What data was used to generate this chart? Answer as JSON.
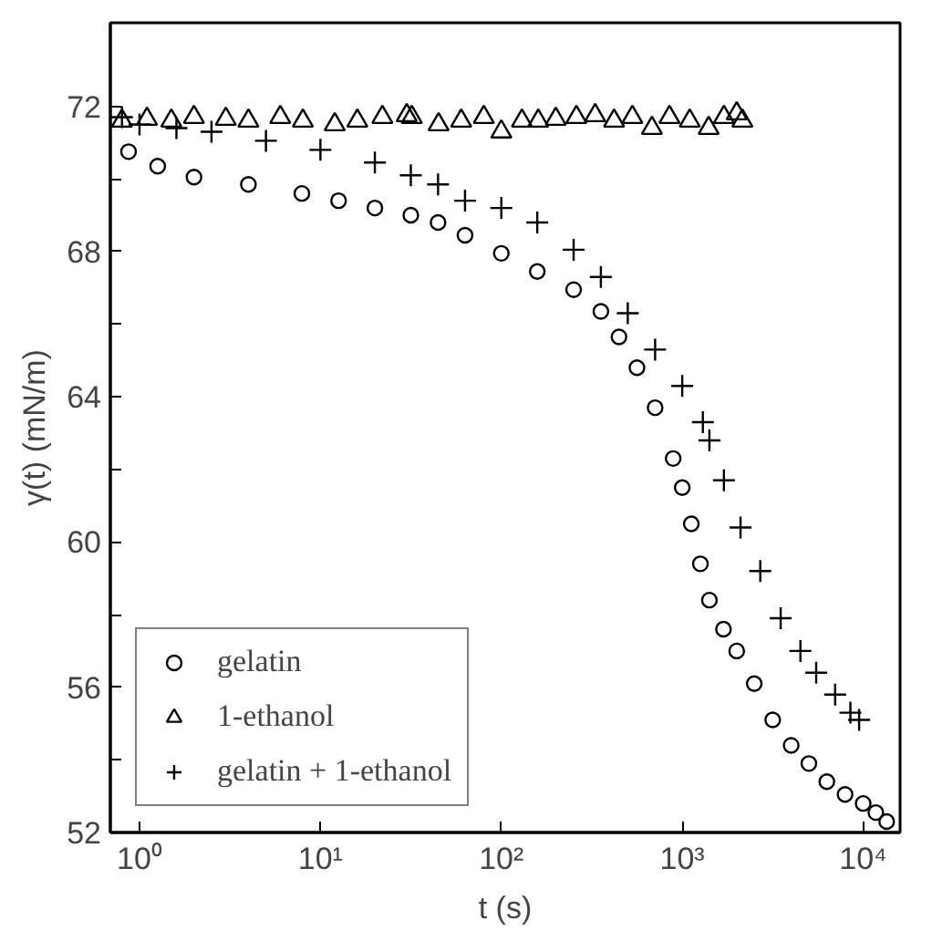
{
  "chart_data": {
    "type": "scatter",
    "xlabel": "t (s)",
    "ylabel": "γ(t) (mN/m)",
    "log": "x",
    "grid": false,
    "legend": "bottom left",
    "xlim": [
      0.69,
      16000
    ],
    "ylim": [
      52,
      74.3
    ],
    "xticks": [
      {
        "value": 1,
        "label": "10⁰"
      },
      {
        "value": 10,
        "label": "10¹"
      },
      {
        "value": 100,
        "label": "10²"
      },
      {
        "value": 1000,
        "label": "10³"
      },
      {
        "value": 10000,
        "label": "10⁴"
      }
    ],
    "yticks": [
      52,
      {
        "value": 54,
        "label": null
      },
      56,
      {
        "value": 58,
        "label": null
      },
      60,
      {
        "value": 62,
        "label": null
      },
      64,
      {
        "value": 66,
        "label": null
      },
      68,
      {
        "value": 70,
        "label": null
      },
      72
    ],
    "series": [
      {
        "name": "gelatin",
        "color": "#000000",
        "marker": "circle",
        "x": [
          0.87,
          1.26,
          2,
          4,
          7.9,
          12.6,
          20,
          31.6,
          44.7,
          63,
          100,
          158,
          251,
          355,
          447,
          562,
          708,
          891,
          1000,
          1122,
          1260,
          1413,
          1690,
          2000,
          2500,
          3162,
          4000,
          5012,
          6300,
          7943,
          10000,
          11750,
          13490
        ],
        "values": [
          70.75,
          70.35,
          70.05,
          69.85,
          69.6,
          69.4,
          69.2,
          69.0,
          68.8,
          68.45,
          67.95,
          67.45,
          66.95,
          66.35,
          65.65,
          64.8,
          63.7,
          62.3,
          61.5,
          60.5,
          59.4,
          58.4,
          57.6,
          57.0,
          56.1,
          55.1,
          54.4,
          53.9,
          53.4,
          53.05,
          52.8,
          52.55,
          52.3
        ]
      },
      {
        "name": "1-ethanol",
        "color": "#000000",
        "marker": "triangle",
        "x": [
          0.8,
          1.1,
          1.5,
          2,
          3,
          4,
          6,
          8,
          12,
          16,
          22,
          30,
          32,
          45,
          60,
          80,
          100,
          130,
          160,
          200,
          260,
          330,
          420,
          530,
          680,
          850,
          1100,
          1400,
          1700,
          2000,
          2150
        ],
        "values": [
          71.6,
          71.65,
          71.6,
          71.7,
          71.65,
          71.6,
          71.7,
          71.6,
          71.5,
          71.6,
          71.7,
          71.75,
          71.7,
          71.5,
          71.6,
          71.7,
          71.3,
          71.6,
          71.6,
          71.65,
          71.7,
          71.75,
          71.6,
          71.7,
          71.4,
          71.7,
          71.6,
          71.4,
          71.7,
          71.8,
          71.6
        ]
      },
      {
        "name": "gelatin + 1-ethanol",
        "color": "#000000",
        "marker": "cross",
        "x": [
          0.8,
          1,
          1.6,
          2.5,
          5,
          10,
          20,
          31.6,
          44.7,
          63,
          100,
          158,
          251,
          355,
          500,
          708,
          1000,
          1300,
          1413,
          1700,
          2100,
          2700,
          3500,
          4500,
          5500,
          7000,
          8500,
          9500
        ],
        "values": [
          71.7,
          71.5,
          71.4,
          71.3,
          71.05,
          70.8,
          70.45,
          70.1,
          69.85,
          69.4,
          69.2,
          68.8,
          68.05,
          67.3,
          66.3,
          65.3,
          64.3,
          63.3,
          62.8,
          61.7,
          60.4,
          59.2,
          57.9,
          57.0,
          56.4,
          55.8,
          55.3,
          55.1
        ]
      }
    ]
  }
}
